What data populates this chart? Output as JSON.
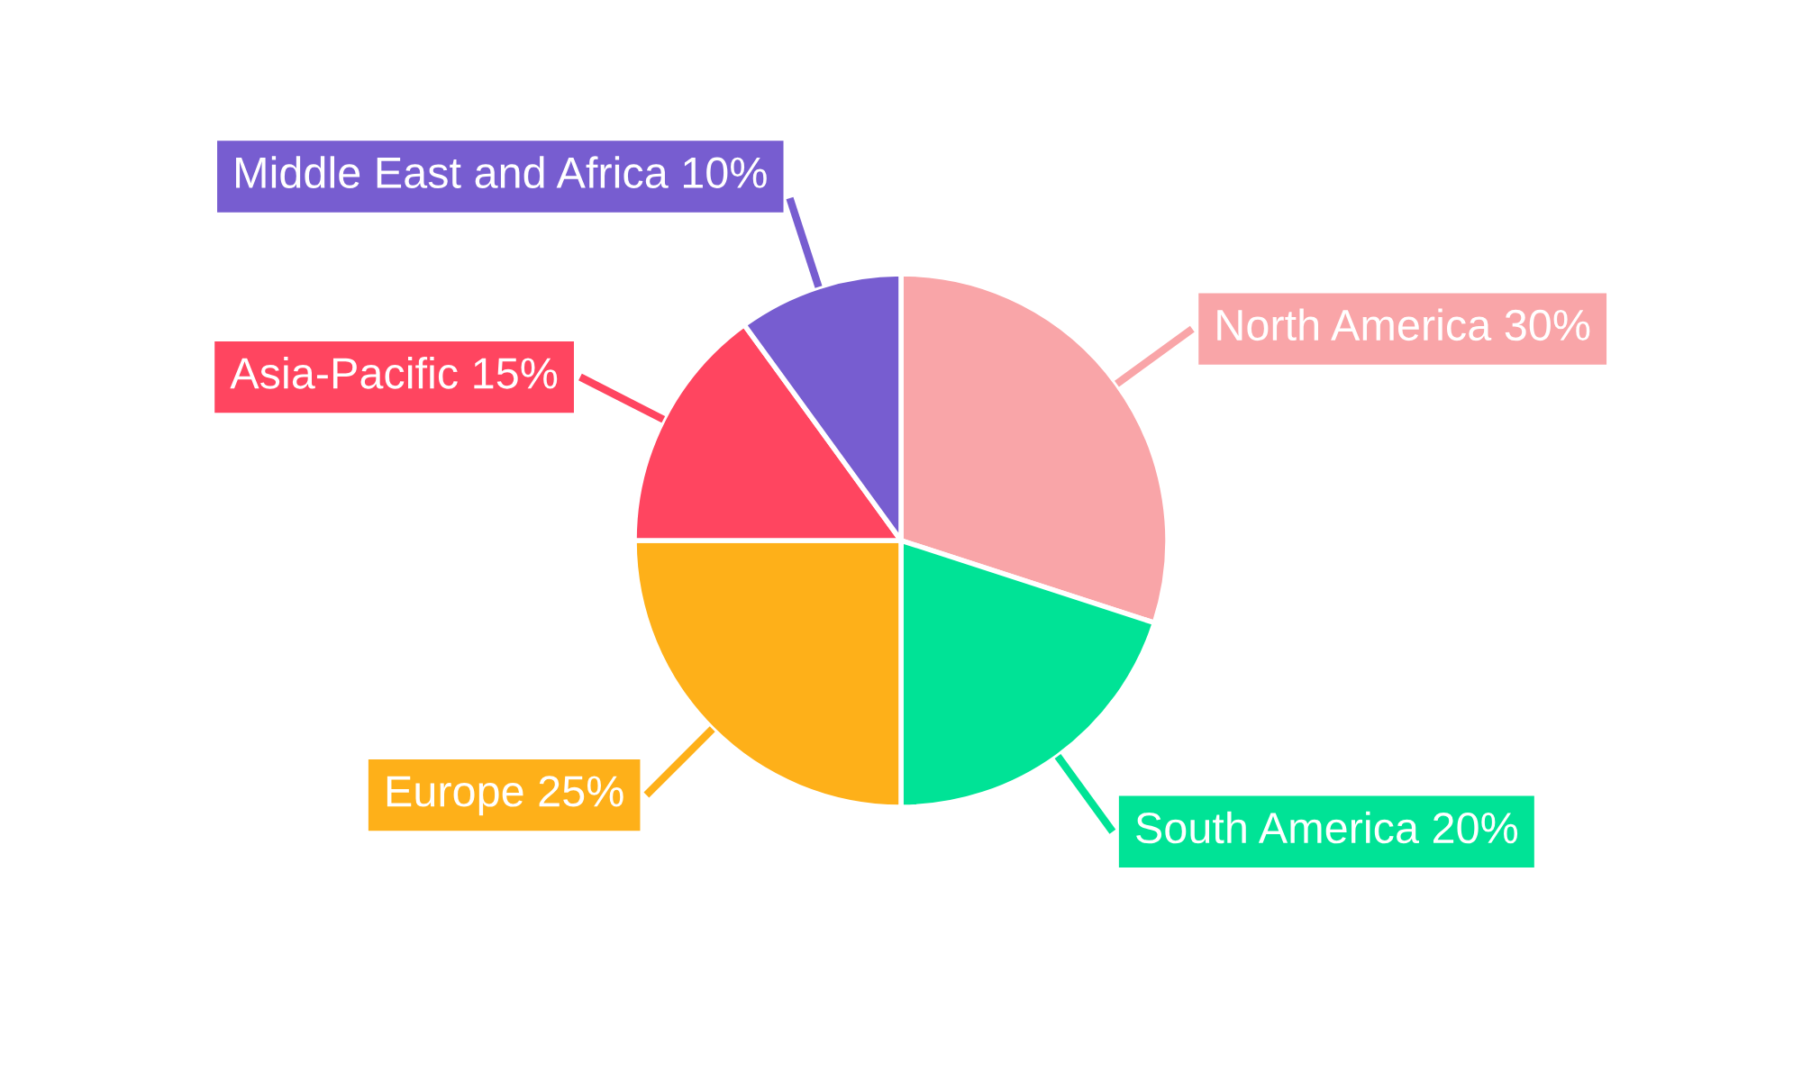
{
  "chart_data": {
    "type": "pie",
    "categories": [
      "North America",
      "South America",
      "Europe",
      "Asia-Pacific",
      "Middle East and Africa"
    ],
    "values": [
      30,
      20,
      25,
      15,
      10
    ],
    "value_labels": [
      "30%",
      "20%",
      "25%",
      "15%",
      "10%"
    ],
    "colors": [
      "#f9a5a8",
      "#00e396",
      "#feb019",
      "#ff4560",
      "#775dd0"
    ],
    "legend": false
  }
}
